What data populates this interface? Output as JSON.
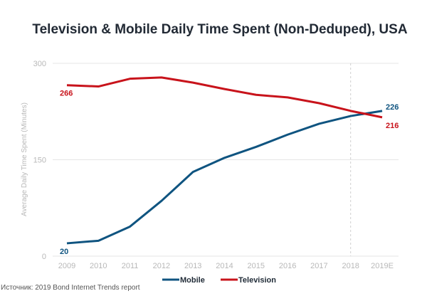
{
  "chart_data": {
    "type": "line",
    "title": "Television & Mobile Daily Time Spent (Non-Deduped), USA",
    "xlabel": "",
    "ylabel": "Average Daily Time Spent (Minutes)",
    "x": [
      "2009",
      "2010",
      "2011",
      "2012",
      "2013",
      "2014",
      "2015",
      "2016",
      "2017",
      "2018",
      "2019E"
    ],
    "ylim": [
      0,
      300
    ],
    "yticks": [
      "0",
      "150",
      "300"
    ],
    "grid": true,
    "legend_position": "bottom-center",
    "annotation_vline_at": "2018",
    "series": [
      {
        "name": "Mobile",
        "color": "#0f5480",
        "values": [
          20,
          24,
          46,
          86,
          131,
          153,
          170,
          189,
          206,
          218,
          226
        ],
        "labels": {
          "first": "20",
          "last": "226"
        }
      },
      {
        "name": "Television",
        "color": "#c8131b",
        "values": [
          266,
          264,
          276,
          278,
          270,
          260,
          251,
          247,
          238,
          226,
          216
        ],
        "labels": {
          "first": "266",
          "last": "216"
        }
      }
    ]
  },
  "source": "Источник: 2019 Bond Internet Trends report"
}
